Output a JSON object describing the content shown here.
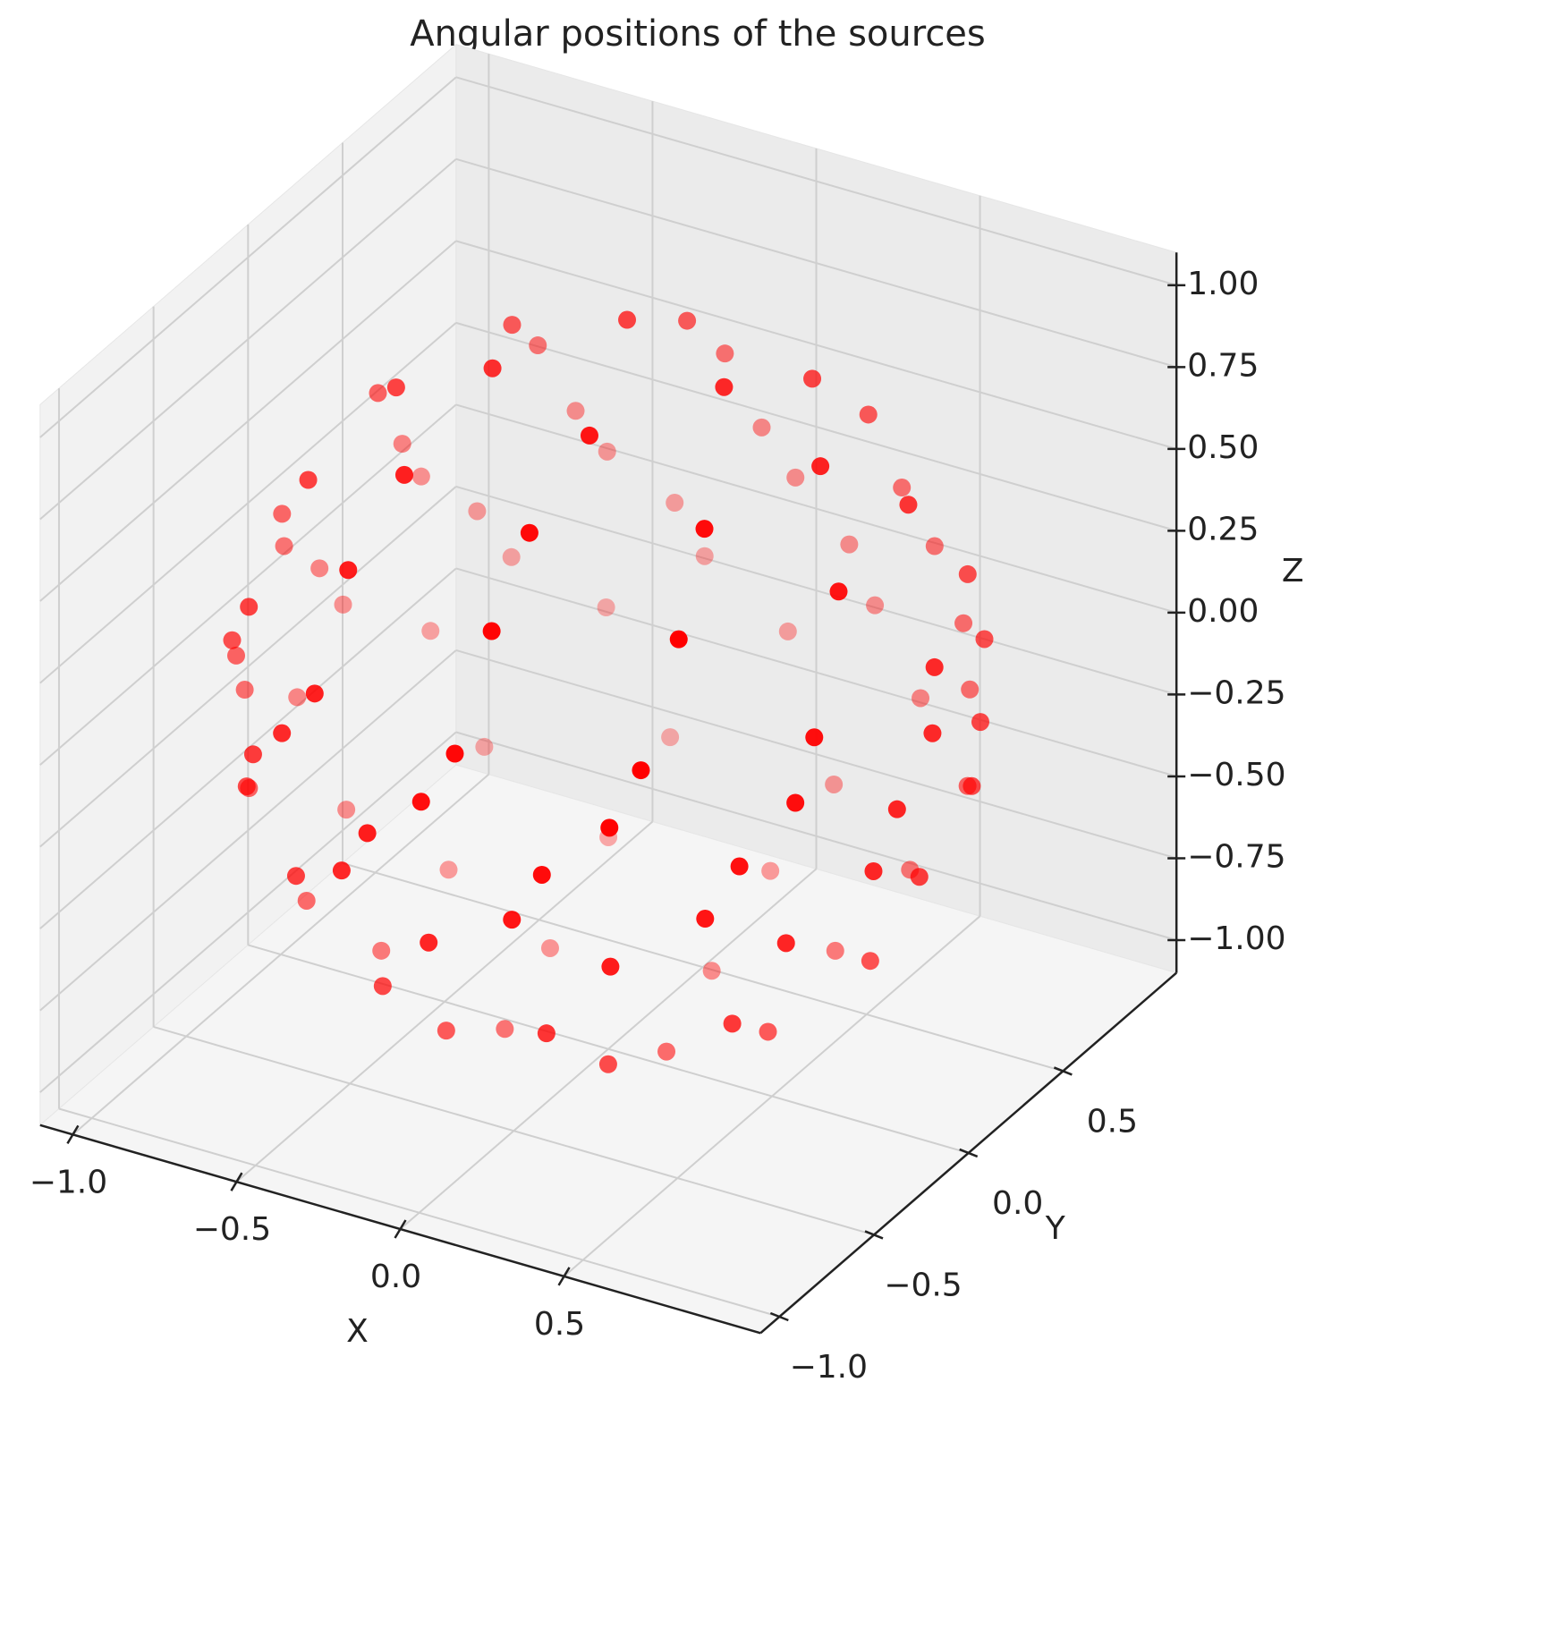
{
  "chart_data": {
    "type": "scatter3d",
    "title": "Angular positions of the sources",
    "xlabel": "X",
    "ylabel": "Y",
    "zlabel": "Z",
    "color": "#ff0000",
    "xlim": [
      -1.1,
      1.1
    ],
    "ylim": [
      -1.1,
      1.1
    ],
    "zlim": [
      -1.1,
      1.1
    ],
    "xticks": [
      {
        "value": -1,
        "label": "−1.0"
      },
      {
        "value": -0.5,
        "label": "−0.5"
      },
      {
        "value": 0,
        "label": "0.0"
      },
      0.5
    ],
    "yticks": [
      {
        "value": -1,
        "label": "−1.0"
      },
      {
        "value": -0.5,
        "label": "−0.5"
      },
      {
        "value": 0,
        "label": "0.0"
      },
      0.5
    ],
    "zticks": [
      {
        "value": -1,
        "label": "−1.00"
      },
      {
        "value": -0.75,
        "label": "−0.75"
      },
      {
        "value": -0.5,
        "label": "−0.50"
      },
      {
        "value": -0.25,
        "label": "−0.25"
      },
      {
        "value": 0,
        "label": "0.00"
      },
      0.25,
      {
        "value": 0.5,
        "label": "0.50"
      },
      0.75,
      {
        "value": 1,
        "label": "1.00"
      }
    ],
    "x": [
      0.29,
      -0.11,
      -0.29,
      0.11,
      0.59,
      0.34,
      -0.1,
      -0.49,
      -0.59,
      -0.34,
      0.1,
      0.49,
      0.72,
      0.39,
      -0.1,
      -0.55,
      -0.79,
      -0.72,
      -0.39,
      0.1,
      0.55,
      0.79,
      0.95,
      0.78,
      0.4,
      -0.08,
      -0.55,
      -0.86,
      -0.95,
      -0.78,
      -0.4,
      0.08,
      0.55,
      0.86,
      0.99,
      0.86,
      0.5,
      0,
      -0.5,
      -0.86,
      -0.99,
      -0.86,
      -0.5,
      0,
      0.5,
      0.86,
      0.94,
      0.64,
      0.17,
      -0.34,
      -0.77,
      -0.98,
      -0.94,
      -0.64,
      -0.17,
      0.34,
      0.77,
      0.98,
      0.96,
      0.7,
      0.26,
      -0.26,
      -0.7,
      -0.96,
      -0.96,
      -0.7,
      -0.26,
      0.26,
      0.7,
      0.96,
      0.95,
      0.82,
      0.48,
      0,
      -0.48,
      -0.82,
      -0.95,
      -0.82,
      -0.48,
      0,
      0.48,
      0.82,
      0.8,
      0.65,
      0.25,
      -0.25,
      -0.65,
      -0.8,
      -0.65,
      -0.25,
      0.25,
      0.65,
      0.52,
      0.16,
      -0.3,
      -0.58,
      -0.52,
      -0.16,
      0.3,
      0.58,
      0.16,
      -0.27,
      -0.16,
      0.27
    ],
    "y": [
      0.11,
      0.29,
      -0.11,
      -0.29,
      0.1,
      0.49,
      0.59,
      0.34,
      -0.1,
      -0.49,
      -0.59,
      -0.34,
      0.34,
      0.7,
      0.79,
      0.58,
      0.15,
      -0.34,
      -0.7,
      -0.79,
      -0.58,
      -0.15,
      0.08,
      0.55,
      0.86,
      0.95,
      0.78,
      0.4,
      -0.08,
      -0.55,
      -0.86,
      -0.95,
      -0.78,
      -0.4,
      0,
      0.5,
      0.86,
      0.99,
      0.86,
      0.5,
      0,
      -0.5,
      -0.86,
      -0.99,
      -0.86,
      -0.5,
      0.34,
      0.77,
      0.98,
      0.94,
      0.64,
      0.17,
      -0.34,
      -0.77,
      -0.98,
      -0.94,
      -0.64,
      -0.17,
      0.26,
      0.7,
      0.96,
      0.96,
      0.7,
      0.26,
      -0.26,
      -0.7,
      -0.96,
      -0.96,
      -0.7,
      -0.26,
      0,
      0.48,
      0.82,
      0.95,
      0.82,
      0.48,
      0,
      -0.48,
      -0.82,
      -0.95,
      -0.82,
      -0.48,
      0,
      0.47,
      0.76,
      0.76,
      0.47,
      0,
      -0.47,
      -0.76,
      -0.76,
      -0.47,
      0.3,
      0.58,
      0.52,
      0.16,
      -0.3,
      -0.58,
      -0.52,
      -0.16,
      0.27,
      0.16,
      -0.27,
      -0.16
    ],
    "z": [
      0.95,
      0.95,
      0.95,
      0.95,
      0.8,
      0.8,
      0.8,
      0.8,
      0.8,
      0.8,
      0.8,
      0.8,
      0.6,
      0.6,
      0.6,
      0.6,
      0.6,
      0.6,
      0.6,
      0.6,
      0.6,
      0.6,
      0.3,
      0.3,
      0.3,
      0.3,
      0.3,
      0.3,
      0.3,
      0.3,
      0.3,
      0.3,
      0.3,
      0.3,
      0.15,
      0.15,
      0.15,
      0.15,
      0.15,
      0.15,
      0.15,
      0.15,
      0.15,
      0.15,
      0.15,
      0.15,
      0,
      0,
      0,
      0,
      0,
      0,
      0,
      0,
      0,
      0,
      0,
      0,
      -0.15,
      -0.15,
      -0.15,
      -0.15,
      -0.15,
      -0.15,
      -0.15,
      -0.15,
      -0.15,
      -0.15,
      -0.15,
      -0.15,
      -0.3,
      -0.3,
      -0.3,
      -0.3,
      -0.3,
      -0.3,
      -0.3,
      -0.3,
      -0.3,
      -0.3,
      -0.3,
      -0.3,
      -0.6,
      -0.6,
      -0.6,
      -0.6,
      -0.6,
      -0.6,
      -0.6,
      -0.6,
      -0.6,
      -0.6,
      -0.8,
      -0.8,
      -0.8,
      -0.8,
      -0.8,
      -0.8,
      -0.8,
      -0.8,
      -0.95,
      -0.95,
      -0.95,
      -0.95
    ]
  }
}
